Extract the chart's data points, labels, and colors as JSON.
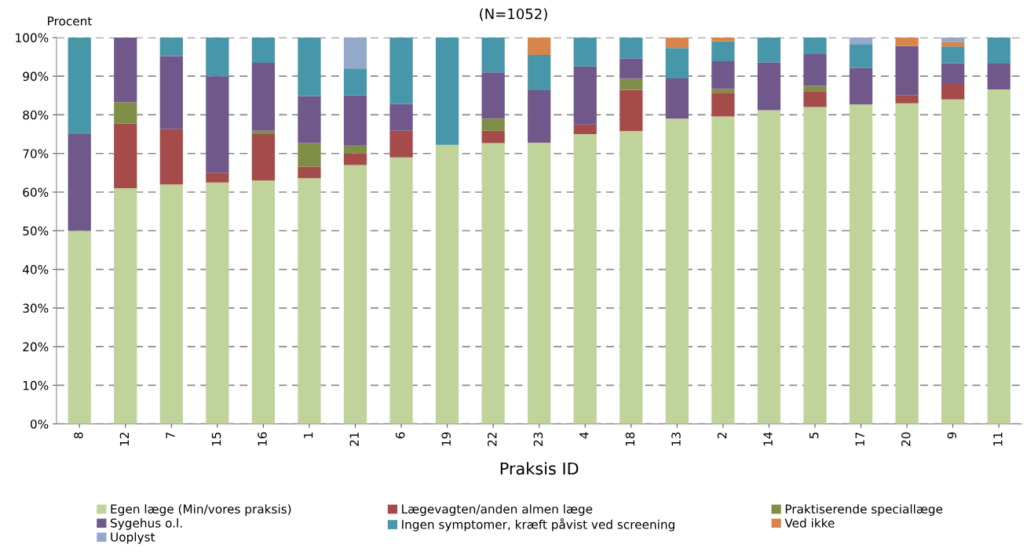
{
  "chart_data": {
    "type": "bar",
    "stacked": true,
    "title": "(N=1052)",
    "xlabel": "Praksis ID",
    "ylabel": "Procent",
    "categories": [
      "8",
      "12",
      "7",
      "15",
      "16",
      "1",
      "21",
      "6",
      "19",
      "22",
      "23",
      "4",
      "18",
      "13",
      "2",
      "14",
      "5",
      "17",
      "20",
      "9",
      "11"
    ],
    "series": [
      {
        "name": "Egen læge (Min/vores praksis)",
        "color": "#c0d39b",
        "values": [
          50,
          61,
          62,
          62.5,
          63,
          63.6,
          67,
          69,
          72.2,
          72.7,
          72.8,
          75,
          75.8,
          79,
          79.6,
          81.2,
          82,
          82.7,
          83,
          84,
          86.6
        ]
      },
      {
        "name": "Lægevagten/anden almen læge",
        "color": "#a54c4a",
        "values": [
          0,
          16.7,
          14.3,
          2.5,
          12,
          3,
          3,
          6.9,
          0,
          3.2,
          0,
          2.5,
          10.7,
          0,
          6.1,
          0,
          4.1,
          0,
          2.1,
          4,
          0
        ]
      },
      {
        "name": "Praktiserende speciallæge",
        "color": "#7f8e46",
        "values": [
          0,
          5.6,
          0,
          0,
          0.9,
          6.1,
          2,
          0,
          0,
          3.1,
          0,
          0,
          2.8,
          0,
          1,
          0,
          1.4,
          0,
          0,
          0,
          0
        ]
      },
      {
        "name": "Sygehus o.l.",
        "color": "#70598a",
        "values": [
          25,
          16.7,
          18.9,
          25,
          17.6,
          12.1,
          13,
          6.9,
          0,
          12,
          13.6,
          15,
          5.3,
          10.4,
          7.2,
          12.4,
          8.2,
          9.4,
          12.7,
          5.4,
          6.7
        ]
      },
      {
        "name": "Ingen symptomer, kræft påvist ved screening",
        "color": "#4896a9",
        "values": [
          25,
          0,
          4.8,
          10,
          6.5,
          15.2,
          7,
          17.2,
          27.8,
          9,
          9.1,
          7.5,
          5.4,
          7.9,
          5.1,
          6.4,
          4.3,
          6.2,
          0,
          4.3,
          6.7
        ]
      },
      {
        "name": "Ved ikke",
        "color": "#d7854a",
        "values": [
          0,
          0,
          0,
          0,
          0,
          0,
          0,
          0,
          0,
          0,
          4.5,
          0,
          0,
          2.7,
          1,
          0,
          0,
          0,
          2.2,
          1.2,
          0
        ]
      },
      {
        "name": "Uoplyst",
        "color": "#94a9ca",
        "values": [
          0,
          0,
          0,
          0,
          0,
          0,
          8,
          0,
          0,
          0,
          0,
          0,
          0,
          0,
          0,
          0,
          0,
          1.7,
          0,
          1.1,
          0
        ]
      }
    ],
    "ylim": [
      0,
      100
    ],
    "yticks": [
      {
        "value": 0,
        "label": "0%"
      },
      {
        "value": 10,
        "label": "10%"
      },
      {
        "value": 20,
        "label": "20%"
      },
      {
        "value": 30,
        "label": "30%"
      },
      {
        "value": 40,
        "label": "40%"
      },
      {
        "value": 50,
        "label": "50%"
      },
      {
        "value": 60,
        "label": "60%"
      },
      {
        "value": 70,
        "label": "70%"
      },
      {
        "value": 80,
        "label": "80%"
      },
      {
        "value": 90,
        "label": "90%"
      },
      {
        "value": 100,
        "label": "100%"
      }
    ],
    "grid": "y",
    "legend": "bottom"
  }
}
